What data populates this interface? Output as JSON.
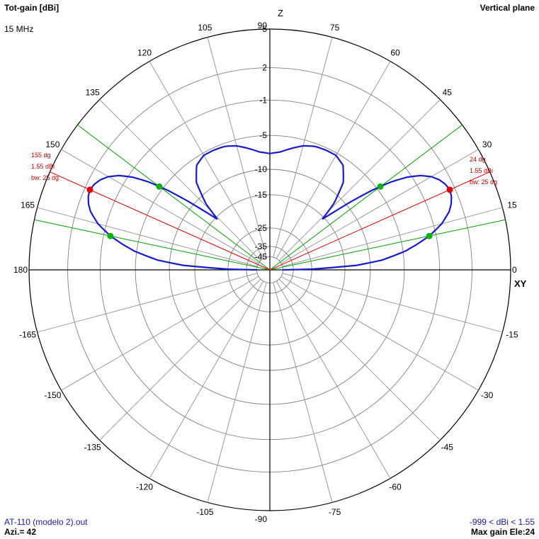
{
  "header": {
    "title": "Tot-gain [dBi]",
    "plane": "Vertical plane",
    "frequency": "15 MHz"
  },
  "footer": {
    "file": "AT-110 (modelo 2).out",
    "azimuth": "Azi.= 42",
    "range": "-999 < dBi < 1.55",
    "max_gain": "Max gain Ele:24"
  },
  "axis_labels": {
    "z": "Z",
    "xy": "XY"
  },
  "colors": {
    "pattern": "#1a1ac8",
    "max_line": "#e00000",
    "beamwidth_line": "#00a000",
    "grid": "#808080",
    "radial": "#909090",
    "annotation": "#c00000"
  },
  "chart_data": {
    "type": "polar",
    "unit": "dBi",
    "radial_scale": "logarithmic",
    "angle_labels": [
      {
        "deg": 0,
        "label": "0"
      },
      {
        "deg": 15,
        "label": "15"
      },
      {
        "deg": 30,
        "label": "30"
      },
      {
        "deg": 45,
        "label": "45"
      },
      {
        "deg": 60,
        "label": "60"
      },
      {
        "deg": 75,
        "label": "75"
      },
      {
        "deg": 90,
        "label": "90"
      },
      {
        "deg": 105,
        "label": "105"
      },
      {
        "deg": 120,
        "label": "120"
      },
      {
        "deg": 135,
        "label": "135"
      },
      {
        "deg": 150,
        "label": "150"
      },
      {
        "deg": 165,
        "label": "165"
      },
      {
        "deg": 180,
        "label": "180"
      },
      {
        "deg": -165,
        "label": "-165"
      },
      {
        "deg": -150,
        "label": "-150"
      },
      {
        "deg": -135,
        "label": "-135"
      },
      {
        "deg": -120,
        "label": "-120"
      },
      {
        "deg": -105,
        "label": "-105"
      },
      {
        "deg": -90,
        "label": "-90"
      },
      {
        "deg": -75,
        "label": "-75"
      },
      {
        "deg": -60,
        "label": "-60"
      },
      {
        "deg": -45,
        "label": "-45"
      },
      {
        "deg": -30,
        "label": "-30"
      },
      {
        "deg": -15,
        "label": "-15"
      }
    ],
    "rings_dbi": [
      5,
      2,
      -1,
      -5,
      -10,
      -15,
      -25,
      -35,
      -45
    ],
    "ring_labels": [
      "5",
      "2",
      "-1",
      "-5",
      "-10",
      "-15",
      "-25",
      "-35",
      "-45"
    ],
    "pattern": {
      "elevation_deg": [
        0,
        1,
        3,
        5,
        8,
        10,
        12,
        15,
        18,
        20,
        22,
        24,
        26,
        28,
        30,
        32,
        34,
        36,
        38,
        40,
        42,
        44,
        46,
        50,
        55,
        60,
        65,
        70,
        75,
        80,
        85,
        90
      ],
      "gain_dbi": [
        -45,
        -25,
        -12.5,
        -8,
        -4.6,
        -3.1,
        -1.7,
        -0.2,
        0.8,
        1.2,
        1.45,
        1.55,
        1.4,
        1.1,
        0.6,
        -0.2,
        -1.4,
        -3.2,
        -5.8,
        -9,
        -12.5,
        -15.5,
        -11.5,
        -7.8,
        -5.9,
        -5.3,
        -5.3,
        -5.4,
        -5.8,
        -6.5,
        -7.2,
        -7.5
      ]
    },
    "max_gain": {
      "elevation_deg": 24,
      "gain_dbi": 1.55,
      "beamwidth_deg": 25,
      "beamwidth_limits_deg": [
        12,
        37
      ],
      "labels_right": [
        "24 dg",
        "1.55 dBi",
        "bw: 25 dg"
      ],
      "labels_left": [
        "155 dg",
        "1.55 dBi",
        "bw: 25 dg"
      ]
    }
  }
}
